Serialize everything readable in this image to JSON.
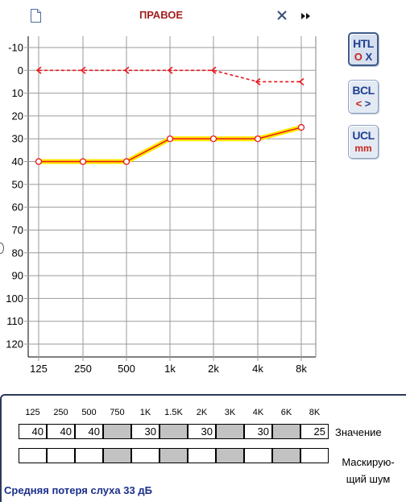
{
  "header": {
    "title": "ПРАВОЕ",
    "doc_icon": "document-icon",
    "close_icon": "close-icon",
    "forward_icon": "fast-forward-icon"
  },
  "chart_data": {
    "type": "line",
    "title": "ПРАВОЕ",
    "x_tick_labels": [
      "125",
      "250",
      "500",
      "1k",
      "2k",
      "4k",
      "8k"
    ],
    "y_tick_labels": [
      "-10",
      "0",
      "10",
      "20",
      "30",
      "40",
      "50",
      "60",
      "70",
      "80",
      "90",
      "100",
      "110",
      "120"
    ],
    "ylim": [
      -10,
      120
    ],
    "y_inverted": true,
    "grid": true,
    "series": [
      {
        "x": [
          "125",
          "250",
          "500",
          "1k",
          "2k",
          "4k",
          "8k"
        ],
        "values": [
          0,
          0,
          0,
          0,
          0,
          5,
          5
        ],
        "color": "#e8161d",
        "style": "dashed",
        "marker": "arrow-left"
      },
      {
        "x": [
          "125",
          "250",
          "500",
          "1k",
          "2k",
          "4k",
          "8k"
        ],
        "values": [
          40,
          40,
          40,
          30,
          30,
          30,
          25
        ],
        "color": "#e8161d",
        "highlight": "#ffe800",
        "style": "solid",
        "marker": "circle"
      }
    ]
  },
  "side_buttons": [
    {
      "label": "HTL",
      "sub": "O X",
      "icon": "htl-icon",
      "active": true
    },
    {
      "label": "BCL",
      "sub": "< >",
      "icon": "bcl-icon",
      "active": false
    },
    {
      "label": "UCL",
      "sub": "mm",
      "icon": "ucl-icon",
      "active": false
    }
  ],
  "table": {
    "frequencies": [
      "125",
      "250",
      "500",
      "750",
      "1K",
      "1.5K",
      "2K",
      "3K",
      "4K",
      "6K",
      "8K"
    ],
    "values": [
      "40",
      "40",
      "40",
      "",
      "30",
      "",
      "30",
      "",
      "30",
      "",
      "25"
    ],
    "gray": [
      false,
      false,
      false,
      true,
      false,
      true,
      false,
      true,
      false,
      true,
      false
    ],
    "value_label": "Значение",
    "mask_label_line1": "Маскирую-",
    "mask_label_line2": "щий шум"
  },
  "footer": {
    "average_loss": "Средняя потеря слуха 33 дБ"
  }
}
